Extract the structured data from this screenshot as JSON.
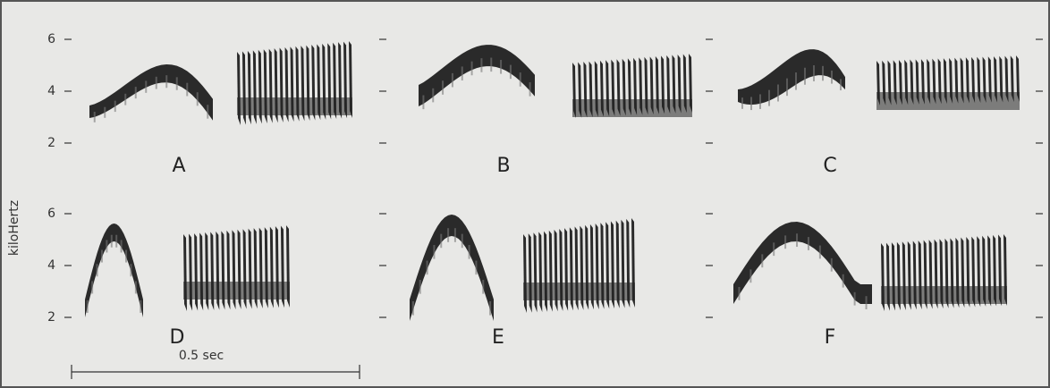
{
  "y_axis": {
    "label": "kiloHertz",
    "ticks": [
      6,
      4,
      2
    ]
  },
  "panels": [
    {
      "label": "A"
    },
    {
      "label": "B"
    },
    {
      "label": "C"
    },
    {
      "label": "D"
    },
    {
      "label": "E"
    },
    {
      "label": "F"
    }
  ],
  "scale_bar": {
    "label": "0.5 sec"
  }
}
